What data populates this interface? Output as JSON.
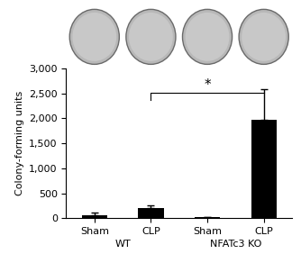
{
  "chart_data": {
    "type": "bar",
    "categories": [
      "Sham",
      "CLP",
      "Sham",
      "CLP"
    ],
    "group_labels": [
      "WT",
      "NFATc3 KO"
    ],
    "values": [
      60,
      200,
      20,
      1980
    ],
    "errors": [
      50,
      60,
      10,
      600
    ],
    "color": "#000000",
    "y_label": "Colony-forming units",
    "ylim": [
      0,
      3000
    ],
    "yticks": [
      0,
      500,
      {
        "value": 1000,
        "label": "1,000"
      },
      {
        "value": 1500,
        "label": "1,500"
      },
      {
        "value": 2000,
        "label": "2,000"
      },
      {
        "value": 2500,
        "label": "2,500"
      },
      {
        "value": 3000,
        "label": "3,000"
      }
    ],
    "annotations": [
      {
        "text": "*",
        "between": [
          1,
          3
        ]
      }
    ],
    "grid": false
  }
}
